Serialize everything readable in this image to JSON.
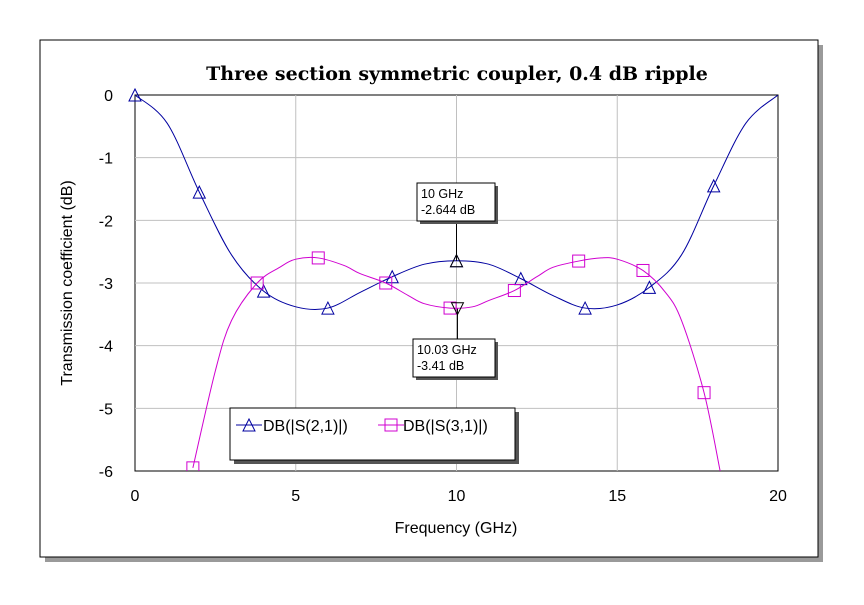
{
  "colors": {
    "s21": "#0000a0",
    "s31": "#d000d0",
    "grid": "#c0c0c0",
    "frame": "#000000"
  },
  "chart_data": {
    "type": "line",
    "title": "Three section symmetric coupler, 0.4 dB ripple",
    "xlabel": "Frequency (GHz)",
    "ylabel": "Transmission coefficient (dB)",
    "xlim": [
      0,
      20
    ],
    "ylim": [
      -6,
      0
    ],
    "xticks": [
      "0",
      "5",
      "10",
      "15",
      "20"
    ],
    "yticks": [
      "0",
      "-1",
      "-2",
      "-3",
      "-4",
      "-5",
      "-6"
    ],
    "grid": true,
    "legend_placement": "bottom-left",
    "series": [
      {
        "name": "DB(|S(2,1)|)",
        "marker": "triangle",
        "x": [
          0,
          1,
          2,
          3,
          4,
          5,
          6,
          7,
          8,
          9,
          10,
          11,
          12,
          13,
          14,
          15,
          16,
          17,
          18,
          19,
          20
        ],
        "y": [
          0,
          -0.45,
          -1.55,
          -2.55,
          -3.13,
          -3.38,
          -3.4,
          -3.15,
          -2.9,
          -2.7,
          -2.644,
          -2.7,
          -2.93,
          -3.2,
          -3.4,
          -3.35,
          -3.07,
          -2.55,
          -1.45,
          -0.45,
          0
        ]
      },
      {
        "name": "DB(|S(3,1)|)",
        "marker": "square",
        "x": [
          1.8,
          2.5,
          3,
          3.8,
          4.5,
          5,
          5.7,
          6.5,
          7,
          7.8,
          8.5,
          9,
          9.8,
          10.5,
          11,
          11.8,
          12.5,
          13,
          13.8,
          14.5,
          15,
          15.8,
          16.5,
          17,
          17.7,
          18.2
        ],
        "y": [
          -5.95,
          -4.4,
          -3.6,
          -3.0,
          -2.75,
          -2.62,
          -2.6,
          -2.72,
          -2.85,
          -3.0,
          -3.2,
          -3.33,
          -3.4,
          -3.38,
          -3.28,
          -3.12,
          -2.9,
          -2.75,
          -2.65,
          -2.6,
          -2.62,
          -2.8,
          -3.15,
          -3.6,
          -4.75,
          -6.0
        ]
      }
    ],
    "markers": [
      {
        "line1": "10 GHz",
        "line2": "-2.644 dB",
        "x": 10,
        "y": -2.644
      },
      {
        "line1": "10.03 GHz",
        "line2": "-3.41 dB",
        "x": 10.03,
        "y": -3.41
      }
    ]
  }
}
